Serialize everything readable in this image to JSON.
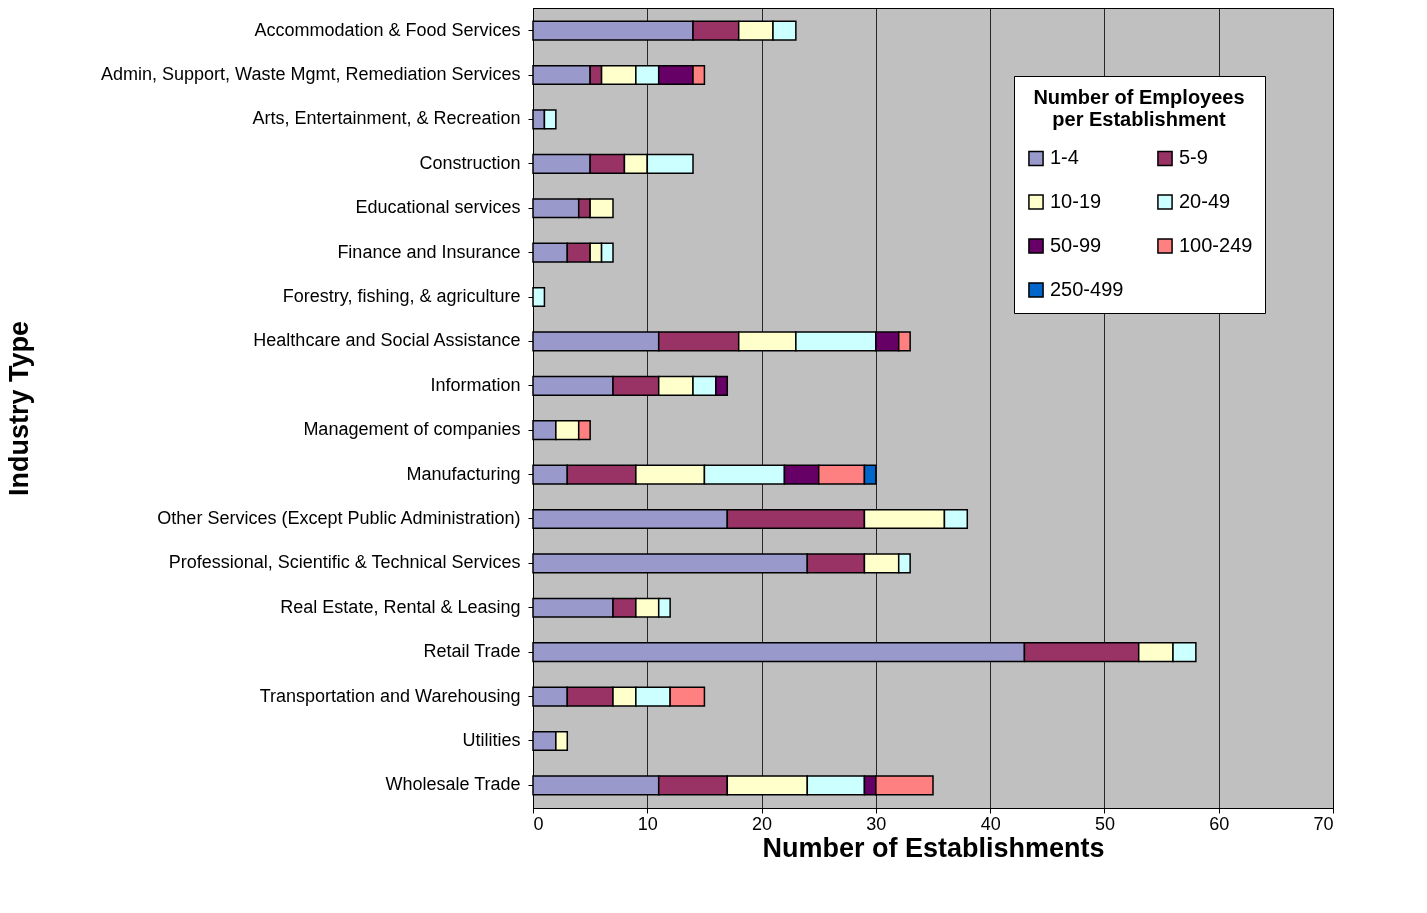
{
  "chart_data": {
    "type": "bar",
    "orientation": "horizontal",
    "stacked": true,
    "xlabel": "Number of Establishments",
    "ylabel": "Industry Type",
    "legend_title": "Number of Employees per Establishment",
    "legend": "top right",
    "grid": "x",
    "xlim": [
      0,
      70
    ],
    "xticks": [
      0,
      10,
      20,
      30,
      40,
      50,
      60,
      70
    ],
    "categories": [
      "Accommodation & Food Services",
      "Admin, Support, Waste Mgmt, Remediation Services",
      "Arts, Entertainment, & Recreation",
      "Construction",
      "Educational services",
      "Finance and Insurance",
      "Forestry, fishing, & agriculture",
      "Healthcare and Social Assistance",
      "Information",
      "Management of companies",
      "Manufacturing",
      "Other Services (Except Public Administration)",
      "Professional, Scientific & Technical Services",
      "Real Estate, Rental & Leasing",
      "Retail Trade",
      "Transportation and Warehousing",
      "Utilities",
      "Wholesale Trade"
    ],
    "series": [
      {
        "name": "1-4",
        "color": "#9999cc",
        "values": [
          14,
          5,
          1,
          5,
          4,
          3,
          null,
          11,
          7,
          2,
          3,
          17,
          24,
          7,
          43,
          3,
          2,
          11
        ]
      },
      {
        "name": "5-9",
        "color": "#993366",
        "values": [
          4,
          1,
          null,
          3,
          1,
          2,
          null,
          7,
          4,
          null,
          6,
          12,
          5,
          2,
          10,
          4,
          null,
          6
        ]
      },
      {
        "name": "10-19",
        "color": "#ffffcc",
        "values": [
          3,
          3,
          null,
          2,
          2,
          1,
          null,
          5,
          3,
          2,
          6,
          7,
          3,
          2,
          3,
          2,
          1,
          7
        ]
      },
      {
        "name": "20-49",
        "color": "#ccffff",
        "values": [
          2,
          2,
          1,
          4,
          null,
          1,
          1,
          7,
          2,
          null,
          7,
          2,
          1,
          1,
          2,
          3,
          null,
          5
        ]
      },
      {
        "name": "50-99",
        "color": "#660066",
        "values": [
          null,
          3,
          null,
          null,
          null,
          null,
          null,
          2,
          1,
          null,
          3,
          null,
          null,
          null,
          null,
          null,
          null,
          1
        ]
      },
      {
        "name": "100-249",
        "color": "#ff8080",
        "values": [
          null,
          1,
          null,
          null,
          null,
          null,
          null,
          1,
          null,
          1,
          4,
          null,
          null,
          null,
          null,
          3,
          null,
          5
        ]
      },
      {
        "name": "250-499",
        "color": "#0066cc",
        "values": [
          null,
          null,
          null,
          null,
          null,
          null,
          null,
          null,
          null,
          null,
          1,
          null,
          null,
          null,
          null,
          null,
          null,
          null
        ]
      }
    ]
  }
}
